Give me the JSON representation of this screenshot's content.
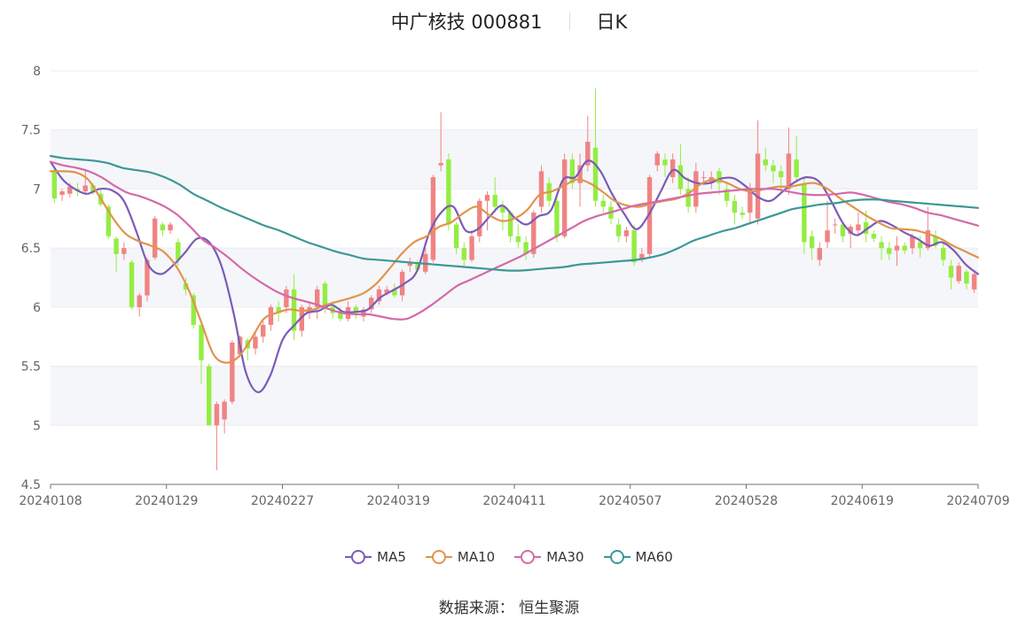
{
  "title": {
    "name": "中广核技 000881",
    "period": "日K"
  },
  "source": {
    "label": "数据来源：",
    "value": "恒生聚源"
  },
  "colors": {
    "up": "#f18383",
    "down": "#94ed43",
    "grid": "#e9ecf3",
    "band": "#f5f6fa",
    "axis": "#666666",
    "ma5": "#7b5bb7",
    "ma10": "#e0944d",
    "ma30": "#d46aa8",
    "ma60": "#3b9896"
  },
  "chart_data": {
    "type": "candlestick",
    "title": "中广核技 000881 日K",
    "ylim": [
      4.5,
      8
    ],
    "yticks": [
      4.5,
      5,
      5.5,
      6,
      6.5,
      7,
      7.5,
      8
    ],
    "xticks": [
      "20240108",
      "20240129",
      "20240227",
      "20240319",
      "20240411",
      "20240507",
      "20240528",
      "20240619",
      "20240709"
    ],
    "legend": [
      "MA5",
      "MA10",
      "MA30",
      "MA60"
    ],
    "legend_position": "bottom",
    "grid": true,
    "candles": [
      [
        7.15,
        6.92,
        7.17,
        6.88
      ],
      [
        6.95,
        6.98,
        7.0,
        6.9
      ],
      [
        6.96,
        7.02,
        7.05,
        6.93
      ],
      [
        7.0,
        6.98,
        7.05,
        6.94
      ],
      [
        6.98,
        7.03,
        7.16,
        6.95
      ],
      [
        7.03,
        6.97,
        7.05,
        6.95
      ],
      [
        6.96,
        6.87,
        6.99,
        6.85
      ],
      [
        6.85,
        6.6,
        6.87,
        6.58
      ],
      [
        6.58,
        6.45,
        6.6,
        6.3
      ],
      [
        6.45,
        6.5,
        6.55,
        6.4
      ],
      [
        6.38,
        6.0,
        6.4,
        5.98
      ],
      [
        6.0,
        6.1,
        6.12,
        5.92
      ],
      [
        6.1,
        6.4,
        6.42,
        6.05
      ],
      [
        6.42,
        6.75,
        6.77,
        6.4
      ],
      [
        6.7,
        6.65,
        6.72,
        6.6
      ],
      [
        6.65,
        6.7,
        6.72,
        6.62
      ],
      [
        6.55,
        6.4,
        6.58,
        6.35
      ],
      [
        6.2,
        6.15,
        6.25,
        6.1
      ],
      [
        6.1,
        5.85,
        6.12,
        5.82
      ],
      [
        5.85,
        5.55,
        5.88,
        5.35
      ],
      [
        5.5,
        5.0,
        5.52,
        5.0
      ],
      [
        5.0,
        5.18,
        5.2,
        4.62
      ],
      [
        5.05,
        5.2,
        5.22,
        4.93
      ],
      [
        5.2,
        5.7,
        5.72,
        5.18
      ],
      [
        5.6,
        5.75,
        5.76,
        5.58
      ],
      [
        5.72,
        5.65,
        5.74,
        5.55
      ],
      [
        5.65,
        5.75,
        5.78,
        5.6
      ],
      [
        5.75,
        5.85,
        5.88,
        5.7
      ],
      [
        5.85,
        6.0,
        6.02,
        5.8
      ],
      [
        6.0,
        5.95,
        6.05,
        5.88
      ],
      [
        6.0,
        6.15,
        6.18,
        5.95
      ],
      [
        6.15,
        5.8,
        6.28,
        5.72
      ],
      [
        5.8,
        6.0,
        6.02,
        5.75
      ],
      [
        5.95,
        6.0,
        6.05,
        5.9
      ],
      [
        6.0,
        6.15,
        6.18,
        5.9
      ],
      [
        6.2,
        6.0,
        6.22,
        5.95
      ],
      [
        6.0,
        5.95,
        6.05,
        5.9
      ],
      [
        5.95,
        5.9,
        6.0,
        5.88
      ],
      [
        5.9,
        6.0,
        6.05,
        5.88
      ],
      [
        6.0,
        5.95,
        6.02,
        5.9
      ],
      [
        5.92,
        5.98,
        6.0,
        5.88
      ],
      [
        5.98,
        6.08,
        6.1,
        5.95
      ],
      [
        6.05,
        6.15,
        6.18,
        6.02
      ],
      [
        6.12,
        6.15,
        6.18,
        6.1
      ],
      [
        6.15,
        6.1,
        6.2,
        6.08
      ],
      [
        6.1,
        6.3,
        6.32,
        6.05
      ],
      [
        6.35,
        6.38,
        6.42,
        6.3
      ],
      [
        6.38,
        6.32,
        6.4,
        6.3
      ],
      [
        6.3,
        6.45,
        6.5,
        6.28
      ],
      [
        6.4,
        7.1,
        7.12,
        6.38
      ],
      [
        7.2,
        7.22,
        7.65,
        7.15
      ],
      [
        7.25,
        6.7,
        7.3,
        6.65
      ],
      [
        6.7,
        6.5,
        6.72,
        6.45
      ],
      [
        6.5,
        6.4,
        6.55,
        6.35
      ],
      [
        6.4,
        6.6,
        6.65,
        6.38
      ],
      [
        6.6,
        6.9,
        6.92,
        6.55
      ],
      [
        6.9,
        6.95,
        6.98,
        6.65
      ],
      [
        6.95,
        6.85,
        7.1,
        6.8
      ],
      [
        6.85,
        6.8,
        6.9,
        6.65
      ],
      [
        6.8,
        6.6,
        6.82,
        6.55
      ],
      [
        6.6,
        6.55,
        6.7,
        6.5
      ],
      [
        6.55,
        6.45,
        6.6,
        6.4
      ],
      [
        6.45,
        6.8,
        6.82,
        6.42
      ],
      [
        6.85,
        7.15,
        7.2,
        6.8
      ],
      [
        7.05,
        6.9,
        7.1,
        6.85
      ],
      [
        6.9,
        6.6,
        6.95,
        6.55
      ],
      [
        6.6,
        7.25,
        7.3,
        6.58
      ],
      [
        7.25,
        7.05,
        7.3,
        7.0
      ],
      [
        7.05,
        7.2,
        7.3,
        6.85
      ],
      [
        7.2,
        7.4,
        7.62,
        7.15
      ],
      [
        7.35,
        6.9,
        7.85,
        6.85
      ],
      [
        6.9,
        6.85,
        6.95,
        6.8
      ],
      [
        6.85,
        6.75,
        6.9,
        6.7
      ],
      [
        6.7,
        6.6,
        6.75,
        6.55
      ],
      [
        6.6,
        6.65,
        6.68,
        6.55
      ],
      [
        6.65,
        6.38,
        6.7,
        6.35
      ],
      [
        6.4,
        6.45,
        6.5,
        6.38
      ],
      [
        6.45,
        7.1,
        7.12,
        6.42
      ],
      [
        7.2,
        7.3,
        7.32,
        7.15
      ],
      [
        7.25,
        7.2,
        7.3,
        7.1
      ],
      [
        7.1,
        7.25,
        7.3,
        7.05
      ],
      [
        7.2,
        7.0,
        7.38,
        6.95
      ],
      [
        7.0,
        6.85,
        7.1,
        6.8
      ],
      [
        6.85,
        7.15,
        7.22,
        6.8
      ],
      [
        7.1,
        7.1,
        7.15,
        7.05
      ],
      [
        7.05,
        7.1,
        7.15,
        7.0
      ],
      [
        7.15,
        7.05,
        7.18,
        6.95
      ],
      [
        7.0,
        6.9,
        7.05,
        6.85
      ],
      [
        6.9,
        6.8,
        6.95,
        6.7
      ],
      [
        6.8,
        6.78,
        6.85,
        6.75
      ],
      [
        6.8,
        7.0,
        7.05,
        6.7
      ],
      [
        6.75,
        7.3,
        7.58,
        6.7
      ],
      [
        7.25,
        7.2,
        7.35,
        7.15
      ],
      [
        7.2,
        7.15,
        7.25,
        7.05
      ],
      [
        7.15,
        7.1,
        7.2,
        7.0
      ],
      [
        7.0,
        7.3,
        7.52,
        6.95
      ],
      [
        7.25,
        7.1,
        7.45,
        7.05
      ],
      [
        7.05,
        6.55,
        7.1,
        6.45
      ],
      [
        6.6,
        6.5,
        6.65,
        6.4
      ],
      [
        6.4,
        6.5,
        6.55,
        6.35
      ],
      [
        6.55,
        6.65,
        6.9,
        6.5
      ],
      [
        6.7,
        6.7,
        6.75,
        6.62
      ],
      [
        6.7,
        6.6,
        6.72,
        6.55
      ],
      [
        6.62,
        6.68,
        6.7,
        6.5
      ],
      [
        6.65,
        6.7,
        6.8,
        6.6
      ],
      [
        6.72,
        6.62,
        6.82,
        6.55
      ],
      [
        6.62,
        6.58,
        6.65,
        6.55
      ],
      [
        6.55,
        6.5,
        6.6,
        6.4
      ],
      [
        6.5,
        6.45,
        6.55,
        6.4
      ],
      [
        6.48,
        6.52,
        6.6,
        6.35
      ],
      [
        6.52,
        6.48,
        6.55,
        6.45
      ],
      [
        6.5,
        6.6,
        6.62,
        6.45
      ],
      [
        6.55,
        6.5,
        6.6,
        6.42
      ],
      [
        6.5,
        6.65,
        6.85,
        6.48
      ],
      [
        6.6,
        6.52,
        6.65,
        6.5
      ],
      [
        6.5,
        6.4,
        6.55,
        6.35
      ],
      [
        6.35,
        6.25,
        6.4,
        6.15
      ],
      [
        6.22,
        6.35,
        6.38,
        6.2
      ],
      [
        6.3,
        6.2,
        6.32,
        6.15
      ],
      [
        6.15,
        6.28,
        6.3,
        6.12
      ]
    ],
    "series": [
      {
        "name": "MA5",
        "values": [
          7.23,
          7.08,
          7.0,
          6.96,
          7.0,
          6.99,
          6.9,
          6.65,
          6.36,
          6.28,
          6.35,
          6.46,
          6.58,
          6.55,
          6.35,
          5.95,
          5.45,
          5.28,
          5.42,
          5.72,
          5.85,
          5.95,
          5.97,
          6.02,
          5.96,
          5.96,
          5.98,
          6.08,
          6.14,
          6.2,
          6.3,
          6.62,
          6.8,
          6.85,
          6.65,
          6.66,
          6.77,
          6.86,
          6.76,
          6.7,
          6.77,
          6.82,
          7.08,
          7.1,
          7.24,
          7.16,
          6.96,
          6.79,
          6.66,
          6.78,
          6.98,
          7.16,
          7.09,
          7.05,
          7.05,
          7.09,
          7.09,
          7.02,
          6.93,
          6.9,
          6.98,
          7.06,
          7.1,
          7.06,
          6.89,
          6.7,
          6.61,
          6.67,
          6.73,
          6.69,
          6.63,
          6.58,
          6.52,
          6.55,
          6.48,
          6.36,
          6.28
        ]
      },
      {
        "name": "MA10",
        "values": [
          7.15,
          7.15,
          7.14,
          7.08,
          6.92,
          6.75,
          6.62,
          6.56,
          6.52,
          6.47,
          6.35,
          6.15,
          5.88,
          5.6,
          5.53,
          5.58,
          5.73,
          5.9,
          5.95,
          5.98,
          5.97,
          5.98,
          6.02,
          6.05,
          6.08,
          6.12,
          6.2,
          6.32,
          6.45,
          6.55,
          6.6,
          6.68,
          6.72,
          6.8,
          6.85,
          6.78,
          6.73,
          6.75,
          6.82,
          6.95,
          6.98,
          7.03,
          7.08,
          7.05,
          6.98,
          6.9,
          6.86,
          6.85,
          6.88,
          6.9,
          6.92,
          6.97,
          7.05,
          7.08,
          7.05,
          7.0,
          6.98,
          7.0,
          7.02,
          7.02,
          7.04,
          7.05,
          7.0,
          6.92,
          6.85,
          6.78,
          6.72,
          6.67,
          6.66,
          6.65,
          6.62,
          6.58,
          6.52,
          6.47,
          6.42
        ]
      },
      {
        "name": "MA30",
        "values": [
          7.23,
          7.2,
          7.18,
          7.15,
          7.1,
          7.03,
          6.97,
          6.94,
          6.9,
          6.85,
          6.78,
          6.68,
          6.57,
          6.5,
          6.42,
          6.33,
          6.25,
          6.18,
          6.12,
          6.08,
          6.05,
          6.02,
          5.98,
          5.95,
          5.94,
          5.94,
          5.92,
          5.9,
          5.9,
          5.95,
          6.02,
          6.1,
          6.18,
          6.23,
          6.28,
          6.33,
          6.38,
          6.43,
          6.49,
          6.55,
          6.61,
          6.67,
          6.73,
          6.77,
          6.8,
          6.83,
          6.86,
          6.88,
          6.9,
          6.92,
          6.94,
          6.96,
          6.97,
          6.98,
          6.99,
          7.0,
          7.0,
          7.0,
          6.98,
          6.96,
          6.95,
          6.95,
          6.96,
          6.97,
          6.95,
          6.92,
          6.89,
          6.87,
          6.84,
          6.8,
          6.78,
          6.75,
          6.72,
          6.69
        ]
      },
      {
        "name": "MA60",
        "values": [
          7.28,
          7.26,
          7.25,
          7.24,
          7.22,
          7.18,
          7.16,
          7.14,
          7.1,
          7.04,
          6.96,
          6.9,
          6.84,
          6.79,
          6.74,
          6.69,
          6.65,
          6.6,
          6.55,
          6.51,
          6.47,
          6.44,
          6.41,
          6.4,
          6.39,
          6.38,
          6.37,
          6.36,
          6.35,
          6.34,
          6.33,
          6.32,
          6.31,
          6.31,
          6.32,
          6.33,
          6.34,
          6.36,
          6.37,
          6.38,
          6.39,
          6.4,
          6.42,
          6.45,
          6.5,
          6.56,
          6.6,
          6.64,
          6.67,
          6.71,
          6.75,
          6.79,
          6.83,
          6.85,
          6.87,
          6.88,
          6.9,
          6.91,
          6.91,
          6.9,
          6.89,
          6.88,
          6.87,
          6.86,
          6.85,
          6.84
        ]
      }
    ]
  }
}
